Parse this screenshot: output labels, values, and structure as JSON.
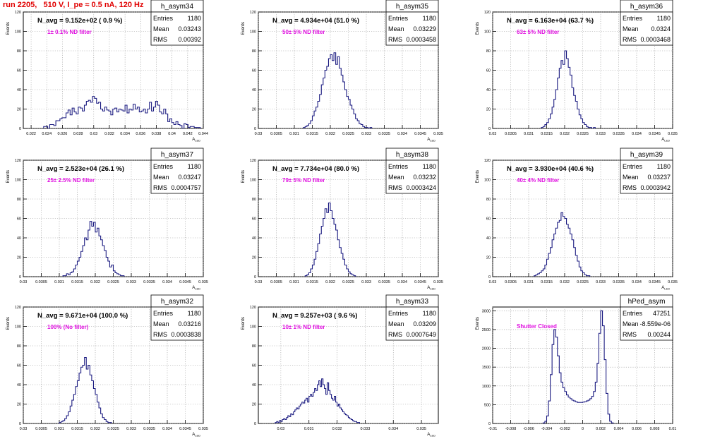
{
  "run_title": "run 2205,   510 V, I_pe ≈ 0.5 nA, 120 Hz",
  "chart_data": [
    {
      "type": "bar",
      "name": "h_asym34",
      "navg": "N_avg = 9.152e+02 ( 0.9 %)",
      "filter": "1± 0.1% ND filter",
      "stats": [
        [
          "Entries",
          "1180"
        ],
        [
          "Mean",
          "0.03243"
        ],
        [
          "RMS",
          "0.00392"
        ]
      ],
      "ylabel": "Events",
      "xlabel": "A_{LED}",
      "xlim": [
        0.021,
        0.044
      ],
      "ylim": [
        0,
        120
      ],
      "xticks": [
        "0.022",
        "0.024",
        "0.026",
        "0.028",
        "0.03",
        "0.032",
        "0.034",
        "0.036",
        "0.038",
        "0.04",
        "0.042",
        "0.044"
      ],
      "yticks": [
        "0",
        "20",
        "40",
        "60",
        "80",
        "100",
        "120"
      ],
      "bins": {
        "start": 0.0236,
        "width": 0.00026,
        "values": [
          2,
          2,
          0,
          4,
          4,
          3,
          8,
          8,
          10,
          11,
          11,
          16,
          19,
          14,
          21,
          17,
          15,
          22,
          21,
          18,
          24,
          28,
          29,
          27,
          33,
          31,
          26,
          27,
          20,
          18,
          22,
          19,
          18,
          14,
          20,
          21,
          17,
          20,
          19,
          18,
          24,
          16,
          20,
          19,
          25,
          20,
          22,
          17,
          18,
          20,
          16,
          20,
          27,
          18,
          22,
          28,
          24,
          17,
          15,
          20,
          15,
          7,
          10,
          6,
          4,
          7,
          4,
          3,
          0,
          5,
          4,
          1,
          2,
          2,
          1,
          1,
          1
        ]
      }
    },
    {
      "type": "bar",
      "name": "h_asym35",
      "navg": "N_avg = 4.934e+04 (51.0 %)",
      "filter": "50± 5% ND filter",
      "stats": [
        [
          "Entries",
          "1180"
        ],
        [
          "Mean",
          "0.03229"
        ],
        [
          "RMS",
          "0.0003458"
        ]
      ],
      "ylabel": "Events",
      "xlabel": "A_{LED}",
      "xlim": [
        0.03,
        0.035
      ],
      "ylim": [
        0,
        120
      ],
      "xticks": [
        "0.03",
        "0.0305",
        "0.031",
        "0.0315",
        "0.032",
        "0.0325",
        "0.033",
        "0.0335",
        "0.034",
        "0.0345",
        "0.035"
      ],
      "yticks": [
        "0",
        "20",
        "40",
        "60",
        "80",
        "100",
        "120"
      ],
      "bins": {
        "start": 0.03125,
        "width": 5e-05,
        "values": [
          1,
          2,
          3,
          5,
          8,
          13,
          18,
          22,
          28,
          35,
          45,
          52,
          60,
          64,
          72,
          76,
          70,
          78,
          66,
          74,
          62,
          55,
          48,
          40,
          33,
          30,
          24,
          20,
          15,
          10,
          8,
          5,
          4,
          2,
          1,
          1,
          0,
          1
        ]
      }
    },
    {
      "type": "bar",
      "name": "h_asym36",
      "navg": "N_avg = 6.163e+04 (63.7 %)",
      "filter": "63± 5% ND filter",
      "stats": [
        [
          "Entries",
          "1180"
        ],
        [
          "Mean",
          "0.0324"
        ],
        [
          "RMS",
          "0.0003468"
        ]
      ],
      "ylabel": "Events",
      "xlabel": "A_{LED}",
      "xlim": [
        0.03,
        0.035
      ],
      "ylim": [
        0,
        120
      ],
      "xticks": [
        "0.03",
        "0.0305",
        "0.031",
        "0.0315",
        "0.032",
        "0.0325",
        "0.033",
        "0.0335",
        "0.034",
        "0.0345",
        "0.035"
      ],
      "yticks": [
        "0",
        "20",
        "40",
        "60",
        "80",
        "100",
        "120"
      ],
      "bins": {
        "start": 0.03135,
        "width": 5e-05,
        "values": [
          1,
          2,
          4,
          6,
          10,
          15,
          22,
          30,
          40,
          52,
          62,
          70,
          66,
          80,
          72,
          63,
          55,
          42,
          34,
          28,
          20,
          14,
          10,
          6,
          4,
          2,
          1,
          1,
          0,
          1
        ]
      }
    },
    {
      "type": "bar",
      "name": "h_asym37",
      "navg": "N_avg = 2.523e+04 (26.1 %)",
      "filter": "25± 2.5% ND filter",
      "stats": [
        [
          "Entries",
          "1180"
        ],
        [
          "Mean",
          "0.03247"
        ],
        [
          "RMS",
          "0.0004757"
        ]
      ],
      "ylabel": "Events",
      "xlabel": "A_{LED}",
      "xlim": [
        0.03,
        0.035
      ],
      "ylim": [
        0,
        120
      ],
      "xticks": [
        "0.03",
        "0.0305",
        "0.031",
        "0.0315",
        "0.032",
        "0.0325",
        "0.033",
        "0.0335",
        "0.034",
        "0.0345",
        "0.035"
      ],
      "yticks": [
        "0",
        "20",
        "40",
        "60",
        "80",
        "100",
        "120"
      ],
      "bins": {
        "start": 0.0311,
        "width": 5e-05,
        "values": [
          1,
          1,
          3,
          2,
          4,
          5,
          8,
          12,
          16,
          20,
          26,
          32,
          40,
          38,
          48,
          57,
          52,
          56,
          46,
          50,
          42,
          38,
          32,
          27,
          20,
          16,
          10,
          12,
          6,
          4,
          3,
          2,
          1,
          1
        ]
      }
    },
    {
      "type": "bar",
      "name": "h_asym38",
      "navg": "N_avg = 7.734e+04 (80.0 %)",
      "filter": "79± 5% ND filter",
      "stats": [
        [
          "Entries",
          "1180"
        ],
        [
          "Mean",
          "0.03232"
        ],
        [
          "RMS",
          "0.0003424"
        ]
      ],
      "ylabel": "Events",
      "xlabel": "A_{LED}",
      "xlim": [
        0.03,
        0.035
      ],
      "ylim": [
        0,
        120
      ],
      "xticks": [
        "0.03",
        "0.0305",
        "0.031",
        "0.0315",
        "0.032",
        "0.0325",
        "0.033",
        "0.0335",
        "0.034",
        "0.0345",
        "0.035"
      ],
      "yticks": [
        "0",
        "20",
        "40",
        "60",
        "80",
        "100",
        "120"
      ],
      "bins": {
        "start": 0.0313,
        "width": 5e-05,
        "values": [
          1,
          2,
          4,
          8,
          12,
          18,
          26,
          34,
          44,
          52,
          60,
          70,
          66,
          76,
          68,
          60,
          54,
          48,
          38,
          30,
          24,
          18,
          12,
          8,
          5,
          3,
          2,
          1
        ]
      }
    },
    {
      "type": "bar",
      "name": "h_asym39",
      "navg": "N_avg = 3.930e+04 (40.6 %)",
      "filter": "40± 4% ND filter",
      "stats": [
        [
          "Entries",
          "1180"
        ],
        [
          "Mean",
          "0.03237"
        ],
        [
          "RMS",
          "0.0003942"
        ]
      ],
      "ylabel": "Events",
      "xlabel": "A_{LED}",
      "xlim": [
        0.03,
        0.035
      ],
      "ylim": [
        0,
        120
      ],
      "xticks": [
        "0.03",
        "0.0305",
        "0.031",
        "0.0315",
        "0.032",
        "0.0325",
        "0.033",
        "0.0335",
        "0.034",
        "0.0345",
        "0.035"
      ],
      "yticks": [
        "0",
        "20",
        "40",
        "60",
        "80",
        "100",
        "120"
      ],
      "bins": {
        "start": 0.03115,
        "width": 5e-05,
        "values": [
          1,
          2,
          3,
          4,
          6,
          8,
          12,
          18,
          24,
          30,
          38,
          44,
          50,
          56,
          58,
          66,
          62,
          60,
          54,
          50,
          44,
          38,
          30,
          22,
          16,
          10,
          6,
          4,
          2,
          1,
          1
        ]
      }
    },
    {
      "type": "bar",
      "name": "h_asym32",
      "navg": "N_avg = 9.671e+04 (100.0 %)",
      "filter": "100% (No filter)",
      "stats": [
        [
          "Entries",
          "1180"
        ],
        [
          "Mean",
          "0.03216"
        ],
        [
          "RMS",
          "0.0003838"
        ]
      ],
      "ylabel": "Events",
      "xlabel": "A_{LED}",
      "xlim": [
        0.03,
        0.035
      ],
      "ylim": [
        0,
        120
      ],
      "xticks": [
        "0.03",
        "0.0305",
        "0.031",
        "0.0315",
        "0.032",
        "0.0325",
        "0.033",
        "0.0335",
        "0.034",
        "0.0345",
        "0.035"
      ],
      "yticks": [
        "0",
        "20",
        "40",
        "60",
        "80",
        "100",
        "120"
      ],
      "bins": {
        "start": 0.031,
        "width": 5e-05,
        "values": [
          1,
          2,
          3,
          5,
          8,
          12,
          18,
          24,
          30,
          38,
          44,
          52,
          58,
          60,
          68,
          56,
          60,
          50,
          44,
          36,
          30,
          22,
          16,
          10,
          6,
          4,
          2,
          1,
          1
        ]
      }
    },
    {
      "type": "bar",
      "name": "h_asym33",
      "navg": "N_avg = 9.257e+03 ( 9.6 %)",
      "filter": "10± 1% ND filter",
      "stats": [
        [
          "Entries",
          "1180"
        ],
        [
          "Mean",
          "0.03209"
        ],
        [
          "RMS",
          "0.0007649"
        ]
      ],
      "ylabel": "Events",
      "xlabel": "A_{LED}",
      "xlim": [
        0.0292,
        0.0356
      ],
      "ylim": [
        0,
        120
      ],
      "xticks": [
        "0.03",
        "0.031",
        "0.032",
        "0.033",
        "0.034",
        "0.035"
      ],
      "yticks": [
        "0",
        "20",
        "40",
        "60",
        "80",
        "100",
        "120"
      ],
      "bins": {
        "start": 0.0298,
        "width": 5e-05,
        "values": [
          1,
          2,
          1,
          3,
          2,
          4,
          5,
          4,
          6,
          8,
          7,
          10,
          9,
          12,
          14,
          16,
          15,
          18,
          20,
          22,
          21,
          24,
          26,
          22,
          28,
          30,
          28,
          32,
          36,
          34,
          40,
          44,
          38,
          46,
          40,
          36,
          30,
          42,
          34,
          30,
          26,
          24,
          28,
          22,
          18,
          20,
          16,
          14,
          12,
          10,
          9,
          8,
          6,
          5,
          4,
          3,
          2,
          2,
          1,
          1
        ]
      }
    },
    {
      "type": "bar",
      "name": "hPed_asym",
      "navg": "",
      "filter": "Shutter Closed",
      "stats": [
        [
          "Entries",
          "47251"
        ],
        [
          "Mean",
          "-8.559e-06"
        ],
        [
          "RMS",
          "0.00244"
        ]
      ],
      "ylabel": "Events",
      "xlabel": "",
      "xlim": [
        -0.01,
        0.01
      ],
      "ylim": [
        0,
        3100
      ],
      "xticks": [
        "-0.01",
        "-0.008",
        "-0.006",
        "-0.004",
        "-0.002",
        "0",
        "0.002",
        "0.004",
        "0.006",
        "0.008",
        "0.01"
      ],
      "yticks": [
        "0",
        "500",
        "1000",
        "1500",
        "2000",
        "2500",
        "3000"
      ],
      "bins": {
        "start": -0.0044,
        "width": 0.0002,
        "values": [
          15,
          60,
          200,
          600,
          1300,
          2100,
          2500,
          2300,
          1800,
          1350,
          1100,
          950,
          850,
          760,
          700,
          660,
          620,
          600,
          580,
          560,
          560,
          560,
          570,
          580,
          600,
          620,
          660,
          720,
          850,
          1100,
          1600,
          2400,
          3000,
          2600,
          1700,
          800,
          250,
          60,
          15
        ]
      }
    }
  ]
}
